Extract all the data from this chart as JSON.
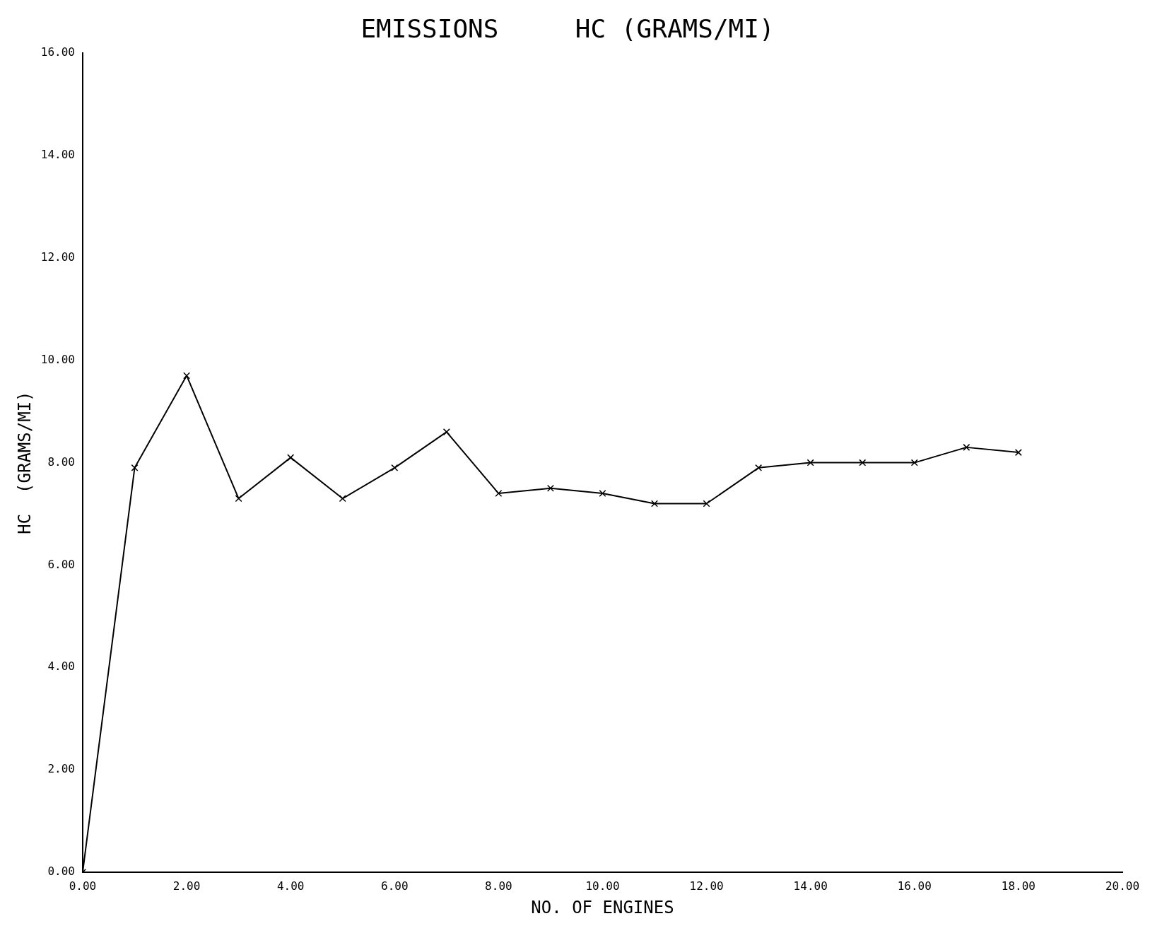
{
  "chart_data": {
    "type": "line",
    "title": "EMISSIONS     HC (GRAMS/MI)",
    "xlabel": "NO. OF ENGINES",
    "ylabel": "HC  (GRAMS/MI)",
    "x": [
      0,
      1,
      2,
      3,
      4,
      5,
      6,
      7,
      8,
      9,
      10,
      11,
      12,
      13,
      14,
      15,
      16,
      17,
      18
    ],
    "series": [
      {
        "color": "#000000",
        "values": [
          0,
          7.9,
          9.7,
          7.3,
          8.1,
          7.3,
          7.9,
          8.6,
          7.4,
          7.5,
          7.4,
          7.2,
          7.2,
          7.9,
          8.0,
          8.0,
          8.0,
          8.3,
          8.2
        ]
      }
    ],
    "xlim": [
      0,
      20
    ],
    "ylim": [
      0,
      16
    ],
    "xticks": [
      {
        "value": 0,
        "label": "0.00"
      },
      {
        "value": 2,
        "label": "2.00"
      },
      {
        "value": 4,
        "label": "4.00"
      },
      {
        "value": 6,
        "label": "6.00"
      },
      {
        "value": 8,
        "label": "8.00"
      },
      {
        "value": 10,
        "label": "10.00"
      },
      {
        "value": 12,
        "label": "12.00"
      },
      {
        "value": 14,
        "label": "14.00"
      },
      {
        "value": 16,
        "label": "16.00"
      },
      {
        "value": 18,
        "label": "18.00"
      },
      {
        "value": 20,
        "label": "20.00"
      }
    ],
    "yticks": [
      {
        "value": 0,
        "label": "0.00"
      },
      {
        "value": 2,
        "label": "2.00"
      },
      {
        "value": 4,
        "label": "4.00"
      },
      {
        "value": 6,
        "label": "6.00"
      },
      {
        "value": 8,
        "label": "8.00"
      },
      {
        "value": 10,
        "label": "10.00"
      },
      {
        "value": 12,
        "label": "12.00"
      },
      {
        "value": 14,
        "label": "14.00"
      },
      {
        "value": 16,
        "label": "16.00"
      }
    ],
    "grid": false,
    "legend": false,
    "marker": "cross",
    "line_style": "solid"
  }
}
